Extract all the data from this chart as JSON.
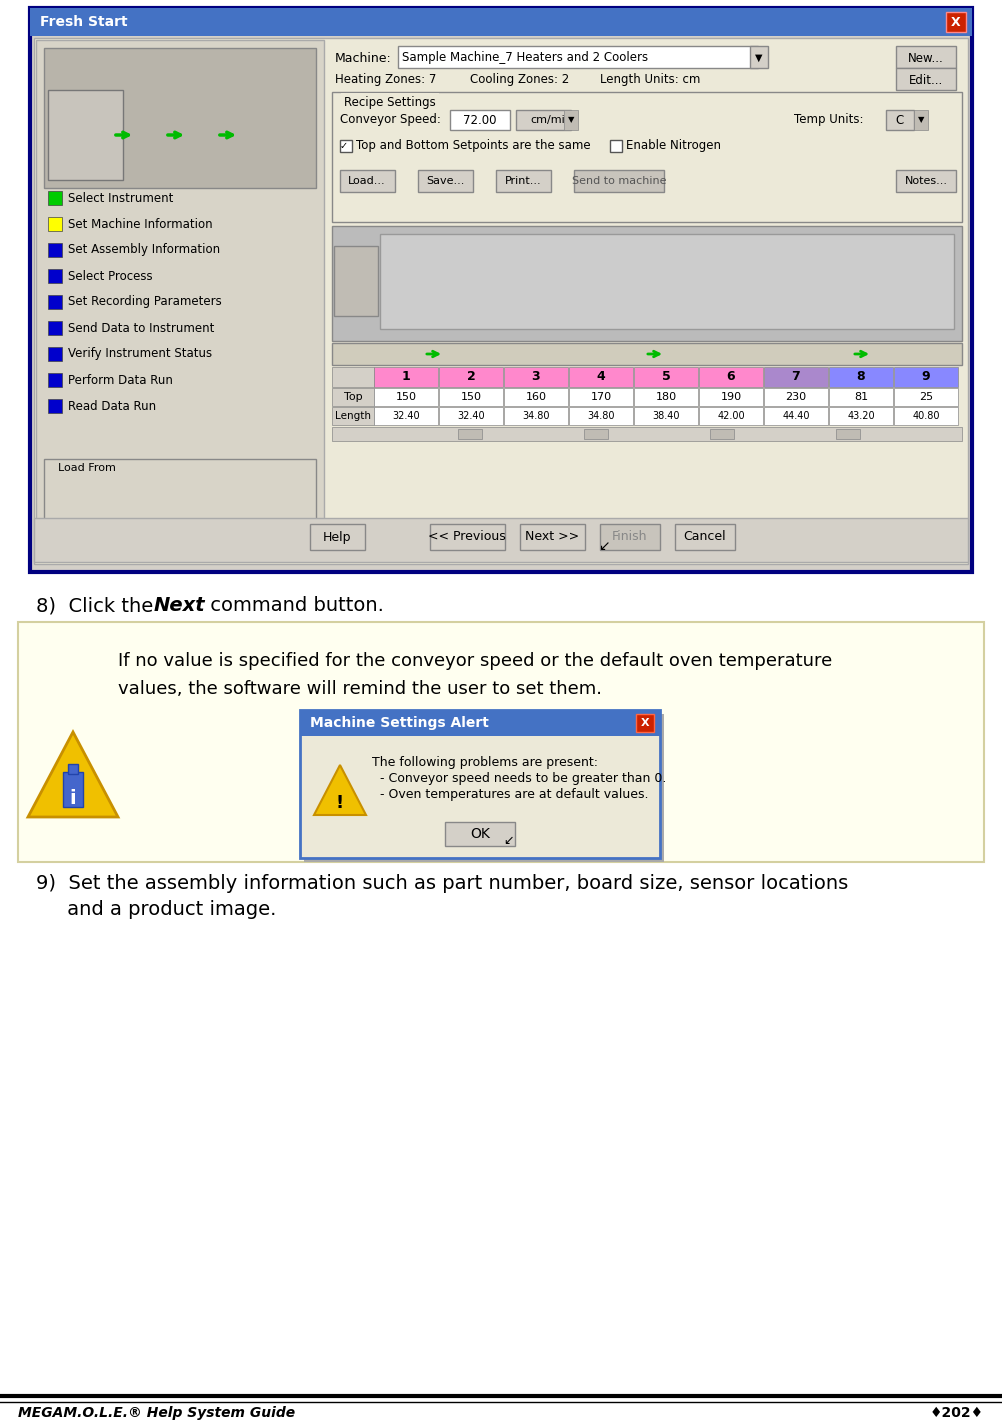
{
  "page_bg": "#ffffff",
  "footer_text_left": "MEGAM.O.L.E.® Help System Guide",
  "footer_text_right": "♦202♦",
  "step8_prefix": "8)  Click the ",
  "step8_bold": "Next",
  "step8_suffix": " command button.",
  "step9_line1": "9)  Set the assembly information such as part number, board size, sensor locations",
  "step9_line2": "     and a product image.",
  "note_bg": "#fffff0",
  "note_border": "#d4d0a0",
  "note_text_line1": "If no value is specified for the conveyor speed or the default oven temperature",
  "note_text_line2": "values, the software will remind the user to set them.",
  "dialog_title": "Machine Settings Alert",
  "dialog_title_bg": "#4472c4",
  "dialog_title_fg": "#ffffff",
  "dialog_bg": "#ece9d8",
  "dialog_border": "#4472c4",
  "dialog_close_bg": "#cc2200",
  "dialog_text_line1": "The following problems are present:",
  "dialog_text_line2": "  - Conveyor speed needs to be greater than 0.",
  "dialog_text_line3": "  - Oven temperatures are at default values.",
  "ok_button_text": "OK",
  "fresh_start_title": "Fresh Start",
  "win_title_bg": "#4472c4",
  "win_title_fg": "#ffffff",
  "win_bg": "#d4d0c8",
  "win_inner_bg": "#ece9d8",
  "win_border": "#000080",
  "sidebar_bg": "#d8d4c8",
  "nav_items": [
    "Select Instrument",
    "Set Machine Information",
    "Set Assembly Information",
    "Select Process",
    "Set Recording Parameters",
    "Send Data to Instrument",
    "Verify Instrument Status",
    "Perform Data Run",
    "Read Data Run"
  ],
  "nav_colors": [
    "#00cc00",
    "#ffff00",
    "#0000cc",
    "#0000cc",
    "#0000cc",
    "#0000cc",
    "#0000cc",
    "#0000cc",
    "#0000cc"
  ],
  "zone_nums": [
    "1",
    "2",
    "3",
    "4",
    "5",
    "6",
    "7",
    "8",
    "9"
  ],
  "zone_colors": [
    "#ff88cc",
    "#ff88cc",
    "#ff88cc",
    "#ff88cc",
    "#ff88cc",
    "#ff88cc",
    "#aa88cc",
    "#8888ff",
    "#8888ff"
  ],
  "zone_top_vals": [
    "150",
    "150",
    "160",
    "170",
    "180",
    "190",
    "230",
    "81",
    "25"
  ],
  "zone_len_vals": [
    "32.40",
    "32.40",
    "34.80",
    "34.80",
    "38.40",
    "42.00",
    "44.40",
    "43.20",
    "40.80"
  ]
}
